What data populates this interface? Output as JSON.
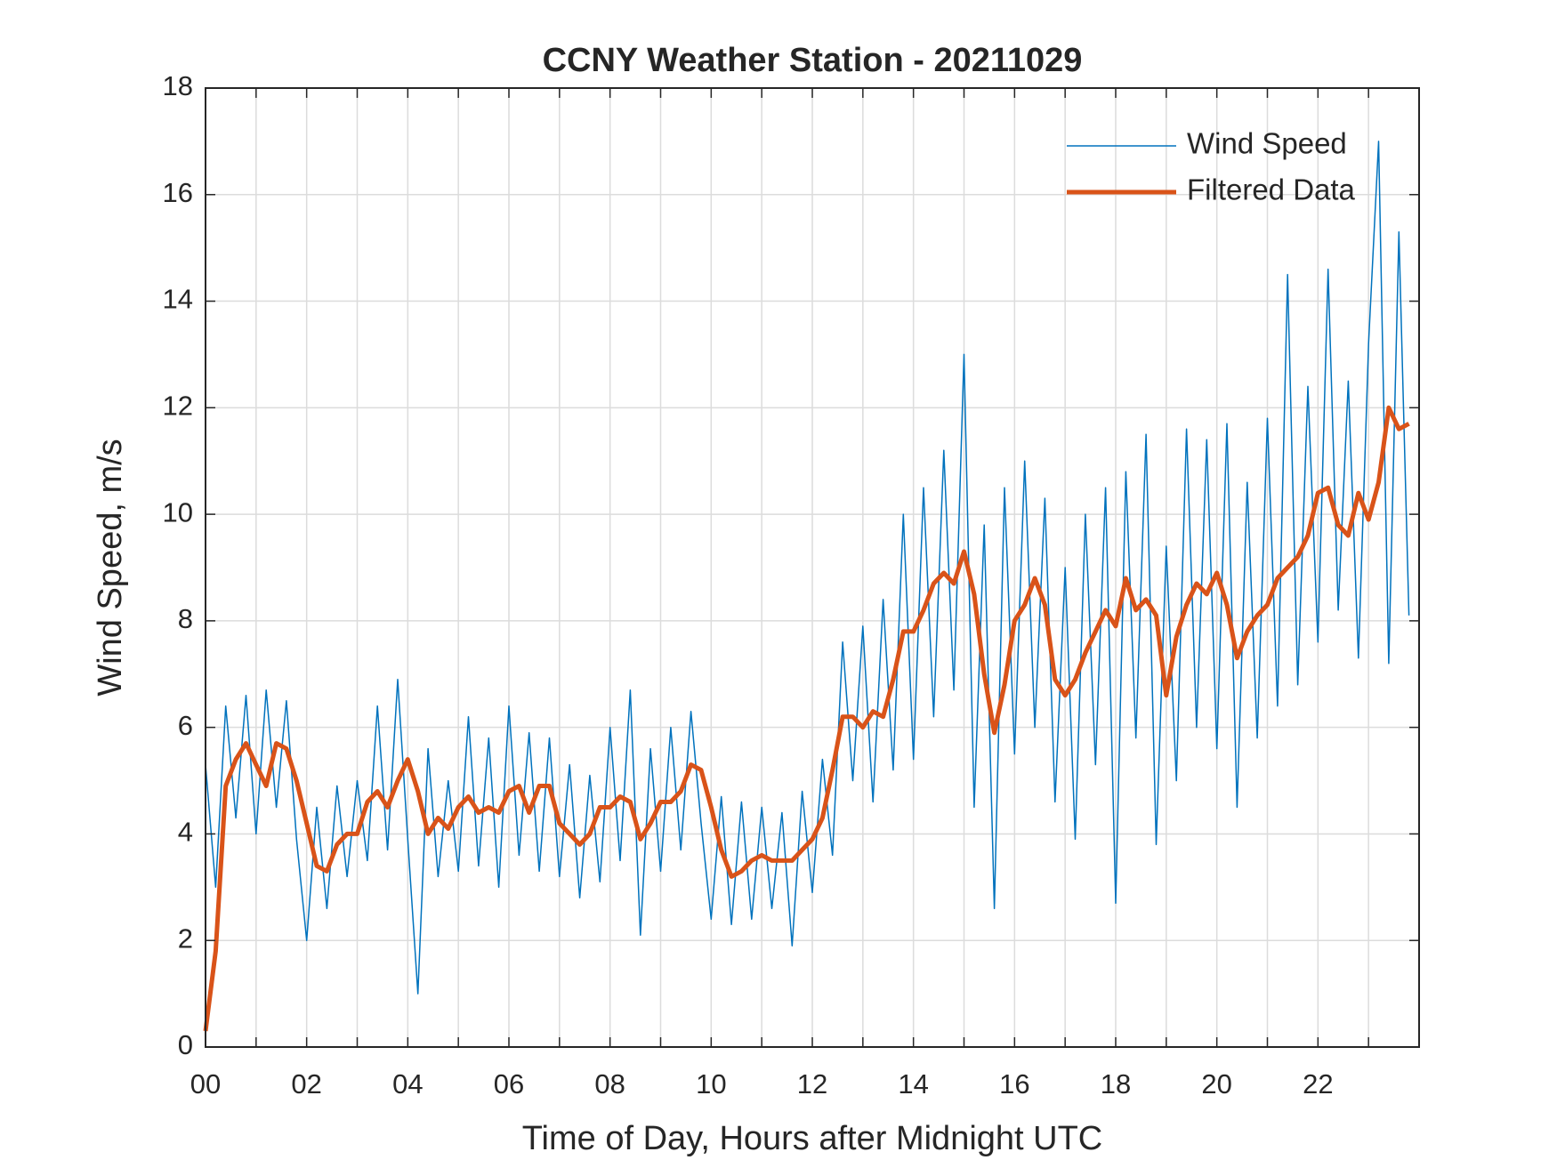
{
  "chart_data": {
    "type": "line",
    "title": "CCNY Weather Station - 20211029",
    "xlabel": "Time of Day, Hours after Midnight UTC",
    "ylabel": "Wind Speed, m/s",
    "xlim": [
      0,
      24
    ],
    "ylim": [
      0,
      18
    ],
    "xticks": [
      {
        "value": 0,
        "label": "00"
      },
      {
        "value": 2,
        "label": "02"
      },
      {
        "value": 4,
        "label": "04"
      },
      {
        "value": 6,
        "label": "06"
      },
      {
        "value": 8,
        "label": "08"
      },
      10,
      12,
      14,
      16,
      18,
      20,
      22
    ],
    "xminorticks": [
      1,
      3,
      5,
      7,
      9,
      11,
      13,
      15,
      17,
      19,
      21,
      23
    ],
    "yticks": [
      0,
      2,
      4,
      6,
      8,
      10,
      12,
      14,
      16,
      18
    ],
    "grid": true,
    "legend": "northeast",
    "x": [
      0,
      0.2,
      0.4,
      0.6,
      0.8,
      1,
      1.2,
      1.4,
      1.6,
      1.8,
      2,
      2.2,
      2.4,
      2.6,
      2.8,
      3,
      3.2,
      3.4,
      3.6,
      3.8,
      4,
      4.2,
      4.4,
      4.6,
      4.8,
      5,
      5.2,
      5.4,
      5.6,
      5.8,
      6,
      6.2,
      6.4,
      6.6,
      6.8,
      7,
      7.2,
      7.4,
      7.6,
      7.8,
      8,
      8.2,
      8.4,
      8.6,
      8.8,
      9,
      9.2,
      9.4,
      9.6,
      9.8,
      10,
      10.2,
      10.4,
      10.6,
      10.8,
      11,
      11.2,
      11.4,
      11.6,
      11.8,
      12,
      12.2,
      12.4,
      12.6,
      12.8,
      13,
      13.2,
      13.4,
      13.6,
      13.8,
      14,
      14.2,
      14.4,
      14.6,
      14.8,
      15,
      15.2,
      15.4,
      15.6,
      15.8,
      16,
      16.2,
      16.4,
      16.6,
      16.8,
      17,
      17.2,
      17.4,
      17.6,
      17.8,
      18,
      18.2,
      18.4,
      18.6,
      18.8,
      19,
      19.2,
      19.4,
      19.6,
      19.8,
      20,
      20.2,
      20.4,
      20.6,
      20.8,
      21,
      21.2,
      21.4,
      21.6,
      21.8,
      22,
      22.2,
      22.4,
      22.6,
      22.8,
      23,
      23.2,
      23.4,
      23.6,
      23.8
    ],
    "series": [
      {
        "name": "Wind Speed",
        "color": "#0072bd",
        "width": 1.5,
        "values": [
          5.3,
          3.0,
          6.4,
          4.3,
          6.6,
          4.0,
          6.7,
          4.5,
          6.5,
          3.9,
          2.0,
          4.5,
          2.6,
          4.9,
          3.2,
          5.0,
          3.5,
          6.4,
          3.7,
          6.9,
          3.9,
          1.0,
          5.6,
          3.2,
          5.0,
          3.3,
          6.2,
          3.4,
          5.8,
          3.0,
          6.4,
          3.6,
          5.9,
          3.3,
          5.8,
          3.2,
          5.3,
          2.8,
          5.1,
          3.1,
          6.0,
          3.5,
          6.7,
          2.1,
          5.6,
          3.3,
          6.0,
          3.7,
          6.3,
          4.2,
          2.4,
          4.7,
          2.3,
          4.6,
          2.4,
          4.5,
          2.6,
          4.4,
          1.9,
          4.8,
          2.9,
          5.4,
          3.6,
          7.6,
          5.0,
          7.9,
          4.6,
          8.4,
          5.2,
          10.0,
          5.4,
          10.5,
          6.2,
          11.2,
          6.7,
          13.0,
          4.5,
          9.8,
          2.6,
          10.5,
          5.5,
          11.0,
          6.0,
          10.3,
          4.6,
          9.0,
          3.9,
          10.0,
          5.3,
          10.5,
          2.7,
          10.8,
          5.8,
          11.5,
          3.8,
          9.4,
          5.0,
          11.6,
          6.0,
          11.4,
          5.6,
          11.7,
          4.5,
          10.6,
          5.8,
          11.8,
          6.4,
          14.5,
          6.8,
          12.4,
          7.6,
          14.6,
          8.2,
          12.5,
          7.3,
          13.2,
          17.0,
          7.2,
          15.3,
          8.1
        ]
      },
      {
        "name": "Filtered Data",
        "color": "#d95319",
        "width": 5,
        "values": [
          0.3,
          1.8,
          4.9,
          5.4,
          5.7,
          5.3,
          4.9,
          5.7,
          5.6,
          5.0,
          4.2,
          3.4,
          3.3,
          3.8,
          4.0,
          4.0,
          4.6,
          4.8,
          4.5,
          5.0,
          5.4,
          4.8,
          4.0,
          4.3,
          4.1,
          4.5,
          4.7,
          4.4,
          4.5,
          4.4,
          4.8,
          4.9,
          4.4,
          4.9,
          4.9,
          4.2,
          4.0,
          3.8,
          4.0,
          4.5,
          4.5,
          4.7,
          4.6,
          3.9,
          4.2,
          4.6,
          4.6,
          4.8,
          5.3,
          5.2,
          4.5,
          3.7,
          3.2,
          3.3,
          3.5,
          3.6,
          3.5,
          3.5,
          3.5,
          3.7,
          3.9,
          4.3,
          5.2,
          6.2,
          6.2,
          6.0,
          6.3,
          6.2,
          6.9,
          7.8,
          7.8,
          8.2,
          8.7,
          8.9,
          8.7,
          9.3,
          8.5,
          7.0,
          5.9,
          6.8,
          8.0,
          8.3,
          8.8,
          8.3,
          6.9,
          6.6,
          6.9,
          7.4,
          7.8,
          8.2,
          7.9,
          8.8,
          8.2,
          8.4,
          8.1,
          6.6,
          7.7,
          8.3,
          8.7,
          8.5,
          8.9,
          8.3,
          7.3,
          7.8,
          8.1,
          8.3,
          8.8,
          9.0,
          9.2,
          9.6,
          10.4,
          10.5,
          9.8,
          9.6,
          10.4,
          9.9,
          10.6,
          12.0,
          11.6,
          11.7
        ]
      }
    ]
  }
}
